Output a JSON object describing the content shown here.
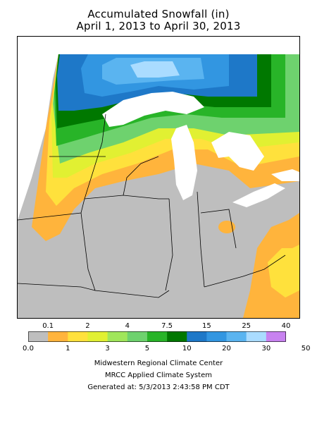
{
  "title_line1": "Accumulated Snowfall (in)",
  "title_line2": "April 1, 2013 to April 30, 2013",
  "legend": {
    "upper_labels": [
      "0.1",
      "2",
      "4",
      "7.5",
      "15",
      "25",
      "40"
    ],
    "lower_labels": [
      "0.0",
      "1",
      "3",
      "5",
      "10",
      "20",
      "30",
      "50"
    ],
    "colors": [
      "#bebebe",
      "#ffb43c",
      "#ffe13c",
      "#e1f032",
      "#a0e65a",
      "#6ed26e",
      "#28b428",
      "#007800",
      "#1e78c8",
      "#3296e1",
      "#5ab4f0",
      "#aadcff",
      "#c882f0"
    ]
  },
  "credits": {
    "line1": "Midwestern Regional Climate Center",
    "line2": "MRCC Applied Climate System",
    "line3": "Generated at: 5/3/2013 2:43:58 PM CDT"
  }
}
